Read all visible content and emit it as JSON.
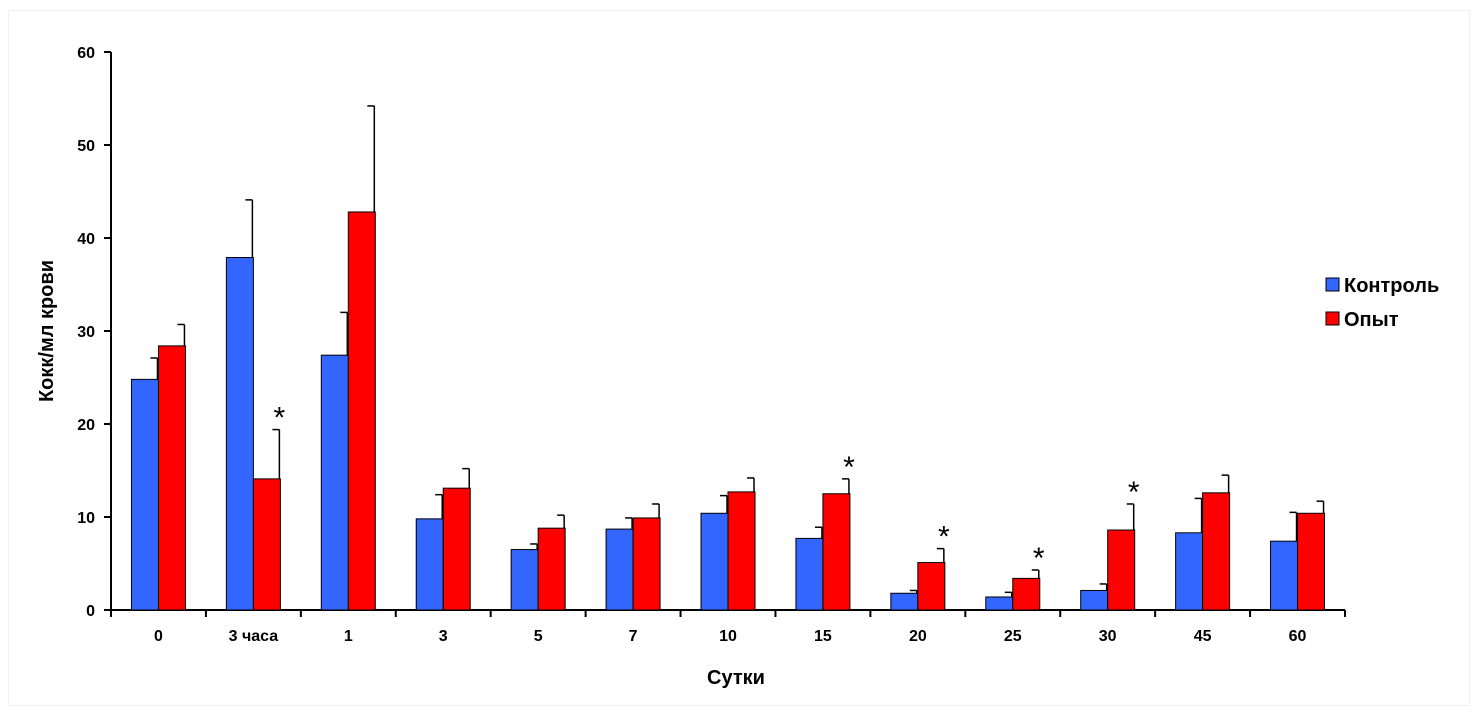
{
  "chart_data": {
    "type": "bar",
    "xlabel": "Сутки",
    "ylabel": "Кокк/мл крови",
    "ylim": [
      0,
      60
    ],
    "yticks": [
      0,
      10,
      20,
      30,
      40,
      50,
      60
    ],
    "categories": [
      "0",
      "3 часа",
      "1",
      "3",
      "5",
      "7",
      "10",
      "15",
      "20",
      "25",
      "30",
      "45",
      "60"
    ],
    "series": [
      {
        "name": "Контроль",
        "color": "#3366ff",
        "values": [
          24.8,
          37.9,
          27.4,
          9.8,
          6.5,
          8.7,
          10.4,
          7.7,
          1.8,
          1.4,
          2.1,
          8.3,
          7.4
        ],
        "errors": [
          2.3,
          6.2,
          4.6,
          2.6,
          0.6,
          1.2,
          1.9,
          1.2,
          0.3,
          0.5,
          0.7,
          3.7,
          3.1
        ]
      },
      {
        "name": "Опыт",
        "color": "#ff0000",
        "values": [
          28.4,
          14.1,
          42.8,
          13.1,
          8.8,
          9.9,
          12.7,
          12.5,
          5.1,
          3.4,
          8.6,
          12.6,
          10.4
        ],
        "errors": [
          2.3,
          5.3,
          11.4,
          2.1,
          1.4,
          1.5,
          1.5,
          1.6,
          1.5,
          0.9,
          2.8,
          1.9,
          1.3
        ]
      }
    ],
    "significance_marks": [
      {
        "category": "3 часа",
        "series": "Опыт",
        "mark": "*"
      },
      {
        "category": "15",
        "series": "Опыт",
        "mark": "*"
      },
      {
        "category": "20",
        "series": "Опыт",
        "mark": "*"
      },
      {
        "category": "25",
        "series": "Опыт",
        "mark": "*"
      },
      {
        "category": "30",
        "series": "Опыт",
        "mark": "*"
      }
    ],
    "legend_position": "right",
    "grid": false
  }
}
